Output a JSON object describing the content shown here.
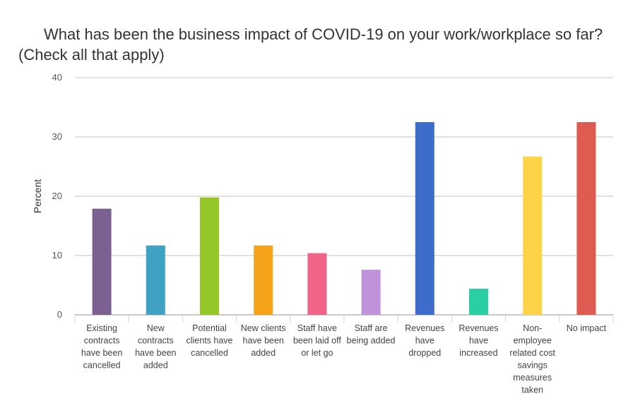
{
  "chart_data": {
    "type": "bar",
    "title": "What has been the business impact of COVID-19 on your work/workplace so far? (Check all that apply)",
    "xlabel": "",
    "ylabel": "Percent",
    "ylim": [
      0,
      40
    ],
    "yticks": [
      0,
      10,
      20,
      30,
      40
    ],
    "grid": true,
    "categories": [
      [
        "Existing",
        "contracts",
        "have been",
        "cancelled"
      ],
      [
        "New",
        "contracts",
        "have been",
        "added"
      ],
      [
        "Potential",
        "clients have",
        "cancelled"
      ],
      [
        "New clients",
        "have been",
        "added"
      ],
      [
        "Staff have",
        "been laid off",
        "or let go"
      ],
      [
        "Staff are",
        "being added"
      ],
      [
        "Revenues",
        "have",
        "dropped"
      ],
      [
        "Revenues",
        "have",
        "increased"
      ],
      [
        "Non-",
        "employee",
        "related cost",
        "savings",
        "measures",
        "taken"
      ],
      [
        "No impact"
      ]
    ],
    "values": [
      17.9,
      11.7,
      19.8,
      11.7,
      10.4,
      7.6,
      32.5,
      4.4,
      26.7,
      32.5
    ],
    "colors": [
      "#7b6191",
      "#40a2c2",
      "#94c727",
      "#f5a31a",
      "#f06488",
      "#bf92da",
      "#3e6ccb",
      "#2ad0a4",
      "#fdd348",
      "#de5b51"
    ]
  }
}
